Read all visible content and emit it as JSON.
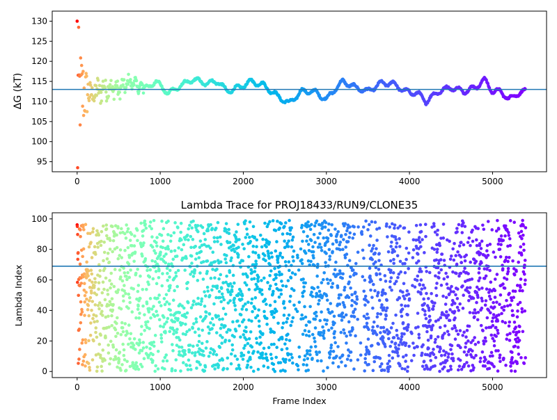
{
  "chart_data": [
    {
      "type": "scatter",
      "title": "",
      "xlabel": "",
      "ylabel": "ΔG (kT)",
      "xlim": [
        -300,
        5650
      ],
      "ylim": [
        92.5,
        132.5
      ],
      "xticks": [
        0,
        1000,
        2000,
        3000,
        4000,
        5000
      ],
      "yticks": [
        95,
        100,
        105,
        110,
        115,
        120,
        125,
        130
      ],
      "hline": 113,
      "hline_color": "#1f77b4",
      "colormap": "rainbow",
      "n_frames": 5400,
      "grid": false,
      "legend": "none",
      "trace_keypoints": [
        [
          200,
          112
        ],
        [
          350,
          113.5
        ],
        [
          500,
          113
        ],
        [
          650,
          115
        ],
        [
          800,
          113
        ],
        [
          950,
          115
        ],
        [
          1100,
          112
        ],
        [
          1250,
          114
        ],
        [
          1400,
          115.5
        ],
        [
          1550,
          114.5
        ],
        [
          1700,
          115
        ],
        [
          1800,
          112.5
        ],
        [
          1950,
          113.5
        ],
        [
          2100,
          115
        ],
        [
          2250,
          114
        ],
        [
          2400,
          111.5
        ],
        [
          2550,
          109.5
        ],
        [
          2700,
          112.5
        ],
        [
          2850,
          112.5
        ],
        [
          3000,
          110.5
        ],
        [
          3100,
          113
        ],
        [
          3200,
          115
        ],
        [
          3350,
          113.5
        ],
        [
          3500,
          112.5
        ],
        [
          3650,
          114.5
        ],
        [
          3800,
          114.5
        ],
        [
          3950,
          112.5
        ],
        [
          4100,
          112
        ],
        [
          4200,
          110
        ],
        [
          4350,
          112.5
        ],
        [
          4500,
          113.5
        ],
        [
          4650,
          112.5
        ],
        [
          4800,
          113.5
        ],
        [
          4900,
          115.5
        ],
        [
          5000,
          112.5
        ],
        [
          5100,
          112.5
        ],
        [
          5200,
          110.5
        ],
        [
          5300,
          112
        ],
        [
          5400,
          112.5
        ]
      ],
      "early_scatter_range": [
        93.5,
        130
      ]
    },
    {
      "type": "scatter",
      "title": "Lambda Trace for PROJ18433/RUN9/CLONE35",
      "xlabel": "Frame Index",
      "ylabel": "Lambda Index",
      "xlim": [
        -300,
        5650
      ],
      "ylim": [
        -4,
        104
      ],
      "xticks": [
        0,
        1000,
        2000,
        3000,
        4000,
        5000
      ],
      "yticks": [
        0,
        20,
        40,
        60,
        80,
        100
      ],
      "hline": 69,
      "hline_color": "#1f77b4",
      "colormap": "rainbow",
      "n_frames": 5400,
      "grid": false,
      "legend": "none",
      "lambda_range": [
        0,
        99
      ]
    }
  ]
}
